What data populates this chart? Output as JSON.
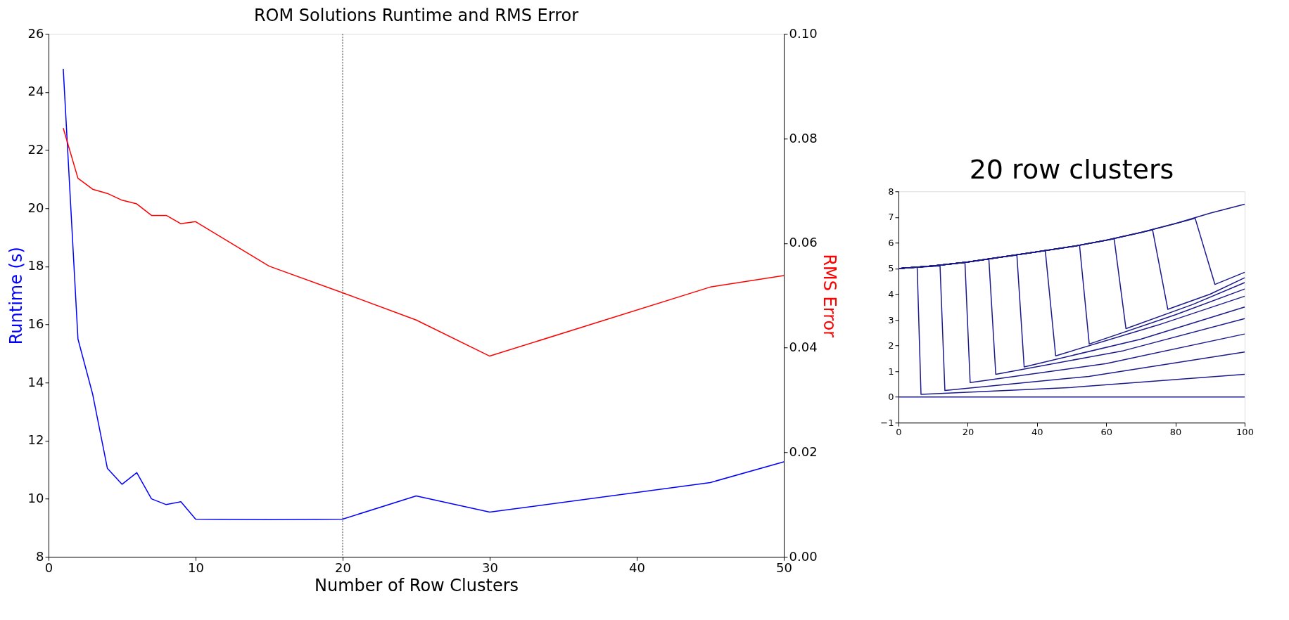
{
  "chart_data": [
    {
      "type": "line",
      "title": "ROM Solutions Runtime and RMS Error",
      "xlabel": "Number of Row Clusters",
      "ylabel": "Runtime (s)",
      "y2label": "RMS Error",
      "x": [
        1,
        2,
        3,
        4,
        5,
        6,
        7,
        8,
        9,
        10,
        15,
        20,
        25,
        30,
        45,
        50
      ],
      "series": [
        {
          "color": "#0000ff",
          "values": [
            24.8,
            15.5,
            13.6,
            11.05,
            10.5,
            10.9,
            10.0,
            9.8,
            9.9,
            9.3,
            9.28,
            9.3,
            10.1,
            9.54,
            10.56,
            11.27
          ]
        },
        {
          "color": "#ff0000",
          "axis": "y2",
          "values": [
            0.082,
            0.0724,
            0.0703,
            0.0695,
            0.0682,
            0.0675,
            0.0653,
            0.0653,
            0.0637,
            0.0641,
            0.0556,
            0.0505,
            0.0453,
            0.0384,
            0.0516,
            0.0538
          ]
        }
      ],
      "xlim": [
        0,
        50
      ],
      "xticks": [
        0,
        10,
        20,
        30,
        40,
        50
      ],
      "ylim": [
        8,
        26
      ],
      "yticks": [
        8,
        10,
        12,
        14,
        16,
        18,
        20,
        22,
        24,
        26
      ],
      "y2lim": [
        0,
        0.1
      ],
      "y2ticks": [
        {
          "value": 0,
          "label": "0.00"
        },
        {
          "value": 0.02,
          "label": "0.02"
        },
        {
          "value": 0.04,
          "label": "0.04"
        },
        {
          "value": 0.06,
          "label": "0.06"
        },
        {
          "value": 0.08,
          "label": "0.08"
        },
        {
          "value": 0.1,
          "label": "0.10"
        }
      ],
      "ref_lines": [
        {
          "axis": "x",
          "value": 20,
          "color": "#000000",
          "line_style": "dotted"
        }
      ],
      "grid": false
    },
    {
      "type": "line",
      "title": "20 row clusters",
      "series": [
        {
          "color": "#1a1a8c",
          "x": [
            0,
            100
          ],
          "values": [
            0,
            0
          ]
        },
        {
          "color": "#1a1a8c",
          "x": [
            0,
            5.4,
            6.5,
            50,
            100
          ],
          "values": [
            5.0,
            5.05,
            0.1,
            0.37,
            0.88
          ]
        },
        {
          "color": "#1a1a8c",
          "x": [
            0,
            12.0,
            13.4,
            55,
            100
          ],
          "values": [
            5.0,
            5.1,
            0.25,
            0.8,
            1.75
          ]
        },
        {
          "color": "#1a1a8c",
          "x": [
            0,
            10,
            19.2,
            20.7,
            60,
            100
          ],
          "values": [
            5.0,
            5.1,
            5.23,
            0.56,
            1.3,
            2.45
          ]
        },
        {
          "color": "#1a1a8c",
          "x": [
            0,
            10,
            20,
            26.1,
            28.1,
            65,
            100
          ],
          "values": [
            5.0,
            5.1,
            5.25,
            5.37,
            0.88,
            1.8,
            3.05
          ]
        },
        {
          "color": "#1a1a8c",
          "x": [
            0,
            10,
            20,
            30,
            34.2,
            36.3,
            70,
            100
          ],
          "values": [
            5.0,
            5.1,
            5.25,
            5.45,
            5.52,
            1.17,
            2.25,
            3.5
          ]
        },
        {
          "color": "#1a1a8c",
          "x": [
            0,
            10,
            20,
            30,
            40,
            42.4,
            45.4,
            75,
            100
          ],
          "values": [
            5.0,
            5.1,
            5.25,
            5.45,
            5.65,
            5.7,
            1.6,
            2.8,
            3.92
          ]
        },
        {
          "color": "#1a1a8c",
          "x": [
            0,
            10,
            20,
            30,
            40,
            50,
            52.3,
            55.1,
            80,
            100
          ],
          "values": [
            5.0,
            5.1,
            5.25,
            5.45,
            5.65,
            5.85,
            5.9,
            2.06,
            3.2,
            4.2
          ]
        },
        {
          "color": "#1a1a8c",
          "x": [
            0,
            10,
            20,
            30,
            40,
            50,
            60,
            62.3,
            65.7,
            85,
            100
          ],
          "values": [
            5.0,
            5.1,
            5.25,
            5.45,
            5.65,
            5.85,
            6.1,
            6.15,
            2.66,
            3.6,
            4.45
          ]
        },
        {
          "color": "#1a1a8c",
          "x": [
            0,
            10,
            20,
            30,
            40,
            50,
            60,
            70,
            73.4,
            77.8,
            90,
            100
          ],
          "values": [
            5.0,
            5.1,
            5.25,
            5.45,
            5.65,
            5.85,
            6.1,
            6.4,
            6.5,
            3.41,
            4.0,
            4.64
          ]
        },
        {
          "color": "#1a1a8c",
          "x": [
            0,
            10,
            20,
            30,
            40,
            50,
            60,
            70,
            80,
            85.7,
            91.4,
            100
          ],
          "values": [
            5.0,
            5.1,
            5.25,
            5.45,
            5.65,
            5.85,
            6.1,
            6.4,
            6.75,
            6.95,
            4.38,
            4.85
          ]
        },
        {
          "color": "#1a1a8c",
          "x": [
            0,
            10,
            20,
            30,
            40,
            50,
            60,
            70,
            80,
            90,
            100
          ],
          "values": [
            5.0,
            5.1,
            5.25,
            5.45,
            5.65,
            5.85,
            6.1,
            6.4,
            6.75,
            7.15,
            7.5
          ]
        }
      ],
      "xlim": [
        0,
        100
      ],
      "xticks": [
        0,
        20,
        40,
        60,
        80,
        100
      ],
      "ylim": [
        -1,
        8
      ],
      "yticks": [
        {
          "value": -1,
          "label": "−1"
        },
        0,
        1,
        2,
        3,
        4,
        5,
        6,
        7,
        8
      ],
      "grid": false
    }
  ]
}
